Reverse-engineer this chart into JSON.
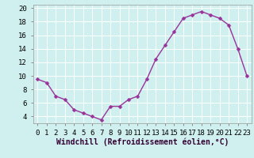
{
  "hours": [
    0,
    1,
    2,
    3,
    4,
    5,
    6,
    7,
    8,
    9,
    10,
    11,
    12,
    13,
    14,
    15,
    16,
    17,
    18,
    19,
    20,
    21,
    22,
    23
  ],
  "values": [
    9.5,
    9.0,
    7.0,
    6.5,
    5.0,
    4.5,
    4.0,
    3.5,
    5.5,
    5.5,
    6.5,
    7.0,
    9.5,
    12.5,
    14.5,
    16.5,
    18.5,
    19.0,
    19.5,
    19.0,
    18.5,
    17.5,
    14.0,
    10.0
  ],
  "line_color": "#993399",
  "marker_color": "#993399",
  "bg_color": "#cff0ee",
  "grid_color": "#ffffff",
  "xlabel": "Windchill (Refroidissement éolien,°C)",
  "ylim": [
    3.0,
    20.5
  ],
  "xlim": [
    -0.5,
    23.5
  ],
  "yticks": [
    4,
    6,
    8,
    10,
    12,
    14,
    16,
    18,
    20
  ],
  "xtick_labels": [
    "0",
    "1",
    "2",
    "3",
    "4",
    "5",
    "6",
    "7",
    "8",
    "9",
    "10",
    "11",
    "12",
    "13",
    "14",
    "15",
    "16",
    "17",
    "18",
    "19",
    "20",
    "21",
    "22",
    "23"
  ],
  "xlabel_fontsize": 7.0,
  "tick_fontsize": 6.5,
  "line_width": 1.0,
  "marker_size": 2.5
}
